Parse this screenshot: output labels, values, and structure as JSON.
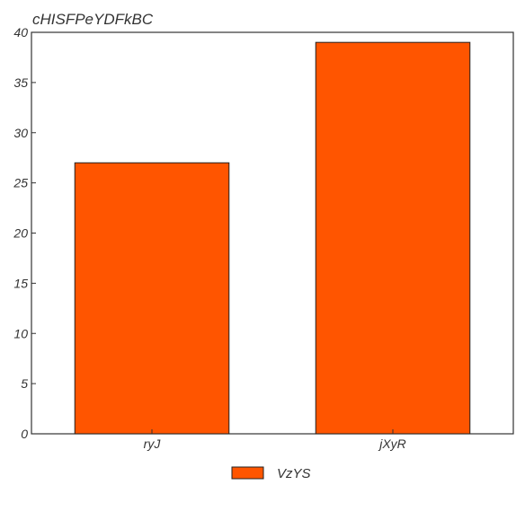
{
  "chart_data": {
    "type": "bar",
    "title": "cHISFPeYDFkBC",
    "xlabel": "",
    "ylabel": "",
    "categories": [
      "ryJ",
      "jXyR"
    ],
    "series": [
      {
        "name": "VzYS",
        "values": [
          27,
          39
        ],
        "color": "#ff5500"
      }
    ],
    "ylim": [
      0,
      40
    ],
    "yticks": [
      0,
      5,
      10,
      15,
      20,
      25,
      30,
      35,
      40
    ],
    "grid": false,
    "legend_position": "bottom-center"
  }
}
